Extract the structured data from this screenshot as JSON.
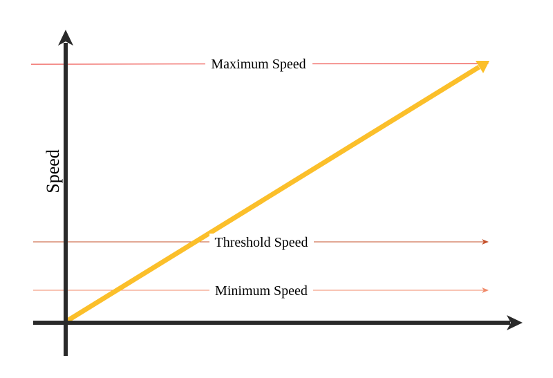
{
  "diagram": {
    "y_axis_label": "Speed",
    "lines": [
      {
        "id": "maximum",
        "label": "Maximum Speed",
        "color": "#e8150e"
      },
      {
        "id": "threshold",
        "label": "Threshold Speed",
        "color": "#c4502a"
      },
      {
        "id": "minimum",
        "label": "Minimum Speed",
        "color": "#f08a6a"
      }
    ],
    "ramp_color": "#fbbf2a",
    "axis_color": "#2a2a2a"
  }
}
